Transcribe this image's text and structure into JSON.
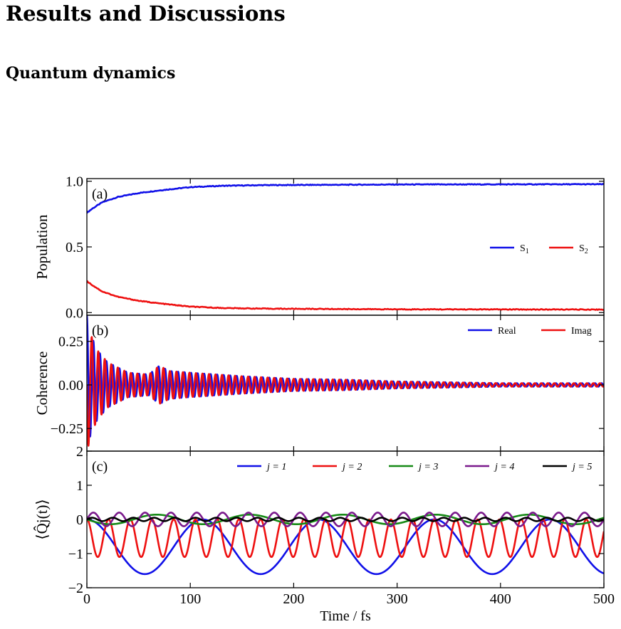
{
  "headings": {
    "section": "Results and Discussions",
    "subsection": "Quantum dynamics"
  },
  "colors": {
    "blue": "#1010e8",
    "red": "#ee1010",
    "green": "#168a16",
    "purple": "#7a1a8c",
    "black": "#000000"
  },
  "chart_data": [
    {
      "type": "line",
      "panel_label": "(a)",
      "ylabel": "Population",
      "xlim": [
        0,
        500
      ],
      "ylim": [
        -0.02,
        1.02
      ],
      "yticks": [
        0.0,
        0.5,
        1.0
      ],
      "ytick_labels": [
        "0.0",
        "0.5",
        "1.0"
      ],
      "legend_position": "center-right",
      "series": [
        {
          "name": "S",
          "sub": "1",
          "color": "#1010e8",
          "x": [
            0,
            5,
            15,
            30,
            50,
            70,
            100,
            130,
            170,
            220,
            300,
            400,
            500
          ],
          "y": [
            0.76,
            0.79,
            0.84,
            0.88,
            0.91,
            0.93,
            0.955,
            0.965,
            0.97,
            0.972,
            0.975,
            0.976,
            0.977
          ]
        },
        {
          "name": "S",
          "sub": "2",
          "color": "#ee1010",
          "x": [
            0,
            5,
            15,
            30,
            50,
            70,
            100,
            130,
            170,
            220,
            300,
            400,
            500
          ],
          "y": [
            0.24,
            0.21,
            0.16,
            0.12,
            0.09,
            0.07,
            0.045,
            0.035,
            0.03,
            0.028,
            0.025,
            0.024,
            0.023
          ]
        }
      ]
    },
    {
      "type": "line",
      "panel_label": "(b)",
      "ylabel": "Coherence",
      "xlim": [
        0,
        500
      ],
      "ylim": [
        -0.38,
        0.4
      ],
      "yticks": [
        -0.25,
        0.0,
        0.25
      ],
      "ytick_labels": [
        "−0.25",
        "0.00",
        "0.25"
      ],
      "legend_position": "top-right",
      "oscillation_period_fs": 6.3,
      "envelope": {
        "t": [
          0,
          3,
          10,
          20,
          40,
          60,
          70,
          80,
          100,
          150,
          200,
          250,
          300,
          350,
          400,
          500
        ],
        "amplitude": [
          0.4,
          0.3,
          0.2,
          0.13,
          0.07,
          0.06,
          0.11,
          0.08,
          0.07,
          0.05,
          0.035,
          0.03,
          0.02,
          0.015,
          0.01,
          0.01
        ]
      },
      "series": [
        {
          "name": "Real",
          "color": "#1010e8",
          "phase": 0
        },
        {
          "name": "Imag",
          "color": "#ee1010",
          "phase": 1.5708
        }
      ]
    },
    {
      "type": "line",
      "panel_label": "(c)",
      "ylabel": "⟨Q̂j(t)⟩",
      "xlabel": "Time / fs",
      "xlim": [
        0,
        500
      ],
      "ylim": [
        -2,
        2
      ],
      "xticks": [
        0,
        100,
        200,
        300,
        400,
        500
      ],
      "xtick_labels": [
        "0",
        "100",
        "200",
        "300",
        "400",
        "500"
      ],
      "yticks": [
        -2,
        -1,
        0,
        1,
        2
      ],
      "ytick_labels": [
        "−2",
        "−1",
        "0",
        "1",
        "2"
      ],
      "legend_position": "top",
      "series": [
        {
          "name": "j = 1",
          "color": "#1010e8",
          "offset": -0.8,
          "amplitude": 0.68,
          "period_fs": 112
        },
        {
          "name": "j = 2",
          "color": "#ee1010",
          "offset": -0.55,
          "amplitude": 0.52,
          "period_fs": 21
        },
        {
          "name": "j = 3",
          "color": "#168a16",
          "offset": 0.0,
          "amplitude": 0.14,
          "period_fs": 90
        },
        {
          "name": "j = 4",
          "color": "#7a1a8c",
          "offset": 0.0,
          "amplitude": 0.2,
          "period_fs": 25
        },
        {
          "name": "j = 5",
          "color": "#000000",
          "offset": 0.0,
          "amplitude": 0.05,
          "period_fs": 20
        }
      ]
    }
  ]
}
